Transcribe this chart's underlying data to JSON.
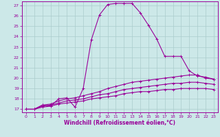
{
  "xlabel": "Windchill (Refroidissement éolien,°C)",
  "bg_color": "#cce8e8",
  "line_color": "#990099",
  "grid_color": "#aacccc",
  "xlim": [
    -0.5,
    23.5
  ],
  "ylim": [
    16.7,
    27.4
  ],
  "yticks": [
    17,
    18,
    19,
    20,
    21,
    22,
    23,
    24,
    25,
    26,
    27
  ],
  "xticks": [
    0,
    1,
    2,
    3,
    4,
    5,
    6,
    7,
    8,
    9,
    10,
    11,
    12,
    13,
    14,
    15,
    16,
    17,
    18,
    19,
    20,
    21,
    22,
    23
  ],
  "series": [
    {
      "x": [
        0,
        1,
        2,
        3,
        4,
        5,
        6,
        7,
        8,
        9,
        10,
        11,
        12,
        13,
        14,
        15,
        16,
        17,
        18,
        19,
        20,
        21,
        22,
        23
      ],
      "y": [
        17.0,
        17.0,
        17.4,
        17.3,
        18.0,
        18.1,
        17.2,
        19.0,
        23.7,
        26.1,
        27.1,
        27.2,
        27.2,
        27.2,
        26.3,
        25.1,
        23.8,
        22.1,
        22.1,
        22.1,
        20.7,
        20.2,
        20.1,
        19.9
      ]
    },
    {
      "x": [
        0,
        1,
        2,
        3,
        4,
        5,
        6,
        7,
        8,
        9,
        10,
        11,
        12,
        13,
        14,
        15,
        16,
        17,
        18,
        19,
        20,
        21,
        22,
        23
      ],
      "y": [
        17.0,
        17.0,
        17.4,
        17.5,
        17.8,
        18.0,
        18.1,
        18.3,
        18.5,
        18.7,
        19.0,
        19.2,
        19.4,
        19.6,
        19.7,
        19.8,
        19.9,
        20.0,
        20.1,
        20.2,
        20.3,
        20.3,
        20.0,
        19.9
      ]
    },
    {
      "x": [
        0,
        1,
        2,
        3,
        4,
        5,
        6,
        7,
        8,
        9,
        10,
        11,
        12,
        13,
        14,
        15,
        16,
        17,
        18,
        19,
        20,
        21,
        22,
        23
      ],
      "y": [
        17.0,
        17.0,
        17.3,
        17.4,
        17.6,
        17.8,
        17.9,
        18.0,
        18.2,
        18.4,
        18.5,
        18.7,
        18.9,
        19.0,
        19.1,
        19.2,
        19.3,
        19.4,
        19.5,
        19.5,
        19.6,
        19.6,
        19.5,
        19.4
      ]
    },
    {
      "x": [
        0,
        1,
        2,
        3,
        4,
        5,
        6,
        7,
        8,
        9,
        10,
        11,
        12,
        13,
        14,
        15,
        16,
        17,
        18,
        19,
        20,
        21,
        22,
        23
      ],
      "y": [
        17.0,
        17.0,
        17.2,
        17.3,
        17.5,
        17.6,
        17.7,
        17.8,
        18.0,
        18.1,
        18.2,
        18.3,
        18.5,
        18.6,
        18.7,
        18.7,
        18.8,
        18.9,
        18.9,
        19.0,
        19.0,
        19.0,
        19.0,
        18.9
      ]
    }
  ]
}
